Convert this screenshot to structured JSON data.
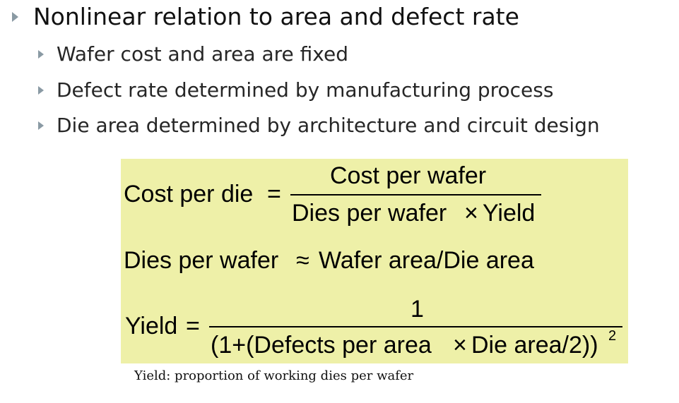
{
  "heading": {
    "text": "Nonlinear relation to area and defect rate"
  },
  "bullets": [
    "Wafer cost and area are fixed",
    "Defect rate determined by manufacturing process",
    "Die area determined by architecture and circuit design"
  ],
  "formulas": {
    "cost": {
      "lhs": "Cost per die",
      "eq": "=",
      "numerator": "Cost per wafer",
      "denominator_a": "Dies per wafer",
      "times": "×",
      "denominator_b": "Yield"
    },
    "dies": {
      "lhs": "Dies per wafer",
      "approx": "≈",
      "rhs": "Wafer area/Die area"
    },
    "yield": {
      "lhs": "Yield",
      "eq": "=",
      "numerator": "1",
      "denominator_a": "(1+(Defects per area",
      "times": "×",
      "denominator_b": "Die area/2))",
      "exponent": "2"
    },
    "box_color": "#eef0a8"
  },
  "caption": "Yield: proportion of working dies per wafer"
}
